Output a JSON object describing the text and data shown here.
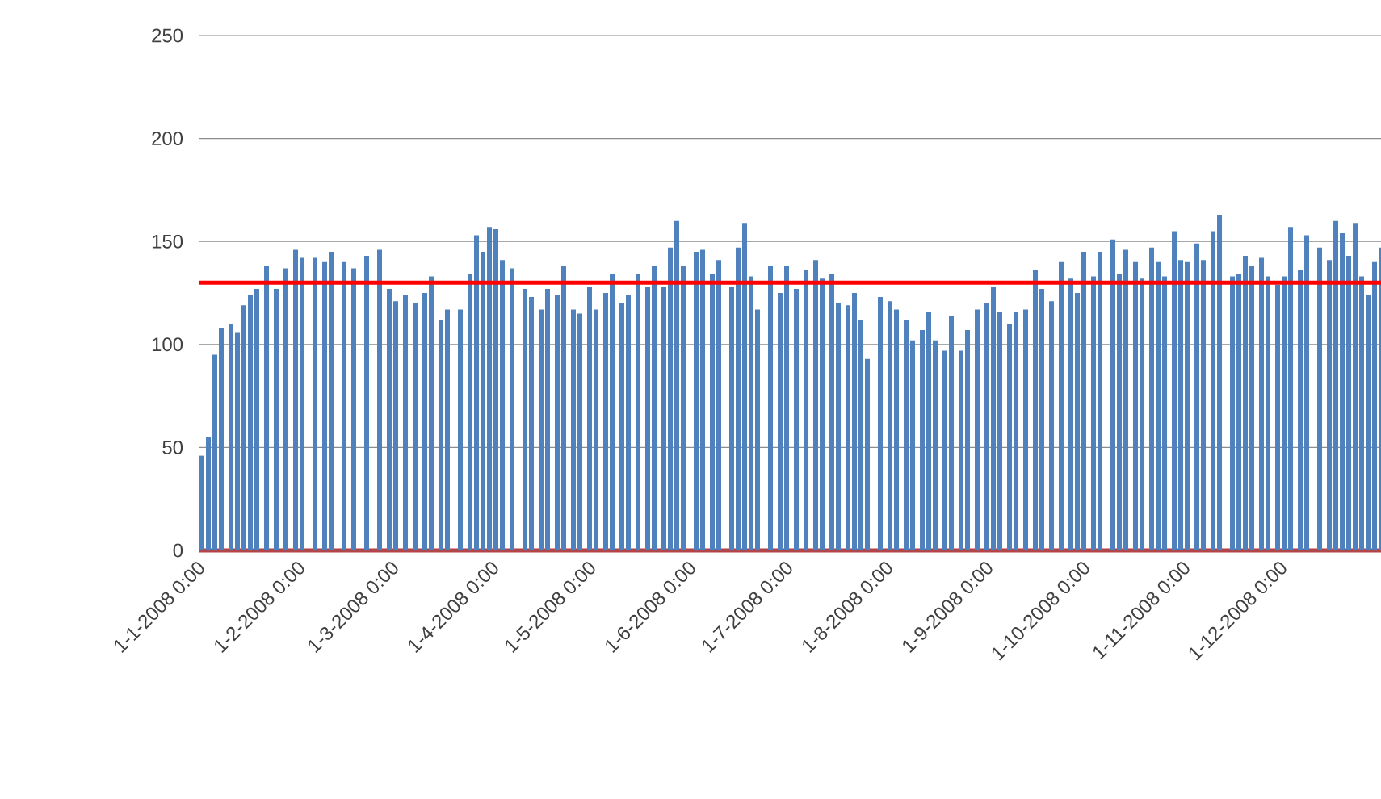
{
  "chart_data": {
    "type": "bar",
    "color": "#4f81bd",
    "x": [
      "2008-01-01",
      "2008-01-03",
      "2008-01-05",
      "2008-01-07",
      "2008-01-10",
      "2008-01-12",
      "2008-01-14",
      "2008-01-16",
      "2008-01-18",
      "2008-01-21",
      "2008-01-24",
      "2008-01-27",
      "2008-01-30",
      "2008-02-01",
      "2008-02-05",
      "2008-02-08",
      "2008-02-10",
      "2008-02-14",
      "2008-02-17",
      "2008-02-21",
      "2008-02-25",
      "2008-02-28",
      "2008-03-01",
      "2008-03-04",
      "2008-03-07",
      "2008-03-10",
      "2008-03-12",
      "2008-03-15",
      "2008-03-17",
      "2008-03-21",
      "2008-03-24",
      "2008-03-26",
      "2008-03-28",
      "2008-03-30",
      "2008-04-01",
      "2008-04-03",
      "2008-04-06",
      "2008-04-10",
      "2008-04-12",
      "2008-04-15",
      "2008-04-17",
      "2008-04-20",
      "2008-04-22",
      "2008-04-25",
      "2008-04-27",
      "2008-04-30",
      "2008-05-02",
      "2008-05-05",
      "2008-05-07",
      "2008-05-10",
      "2008-05-12",
      "2008-05-15",
      "2008-05-18",
      "2008-05-20",
      "2008-05-23",
      "2008-05-25",
      "2008-05-27",
      "2008-05-29",
      "2008-06-02",
      "2008-06-04",
      "2008-06-07",
      "2008-06-09",
      "2008-06-13",
      "2008-06-15",
      "2008-06-17",
      "2008-06-19",
      "2008-06-21",
      "2008-06-25",
      "2008-06-28",
      "2008-06-30",
      "2008-07-03",
      "2008-07-06",
      "2008-07-09",
      "2008-07-11",
      "2008-07-14",
      "2008-07-16",
      "2008-07-19",
      "2008-07-21",
      "2008-07-23",
      "2008-07-25",
      "2008-07-29",
      "2008-08-01",
      "2008-08-03",
      "2008-08-06",
      "2008-08-08",
      "2008-08-11",
      "2008-08-13",
      "2008-08-15",
      "2008-08-18",
      "2008-08-20",
      "2008-08-23",
      "2008-08-25",
      "2008-08-28",
      "2008-08-31",
      "2008-09-02",
      "2008-09-04",
      "2008-09-07",
      "2008-09-09",
      "2008-09-12",
      "2008-09-15",
      "2008-09-17",
      "2008-09-20",
      "2008-09-23",
      "2008-09-26",
      "2008-09-28",
      "2008-09-30",
      "2008-10-03",
      "2008-10-05",
      "2008-10-09",
      "2008-10-11",
      "2008-10-13",
      "2008-10-16",
      "2008-10-18",
      "2008-10-21",
      "2008-10-23",
      "2008-10-25",
      "2008-10-28",
      "2008-10-30",
      "2008-11-01",
      "2008-11-04",
      "2008-11-06",
      "2008-11-09",
      "2008-11-11",
      "2008-11-15",
      "2008-11-17",
      "2008-11-19",
      "2008-11-21",
      "2008-11-24",
      "2008-11-26",
      "2008-11-29",
      "2008-12-01",
      "2008-12-03",
      "2008-12-06",
      "2008-12-08",
      "2008-12-12",
      "2008-12-15",
      "2008-12-17",
      "2008-12-19",
      "2008-12-21",
      "2008-12-23",
      "2008-12-25",
      "2008-12-27",
      "2008-12-29",
      "2008-12-31"
    ],
    "values": [
      46,
      55,
      95,
      108,
      110,
      106,
      119,
      124,
      127,
      138,
      127,
      137,
      146,
      142,
      142,
      140,
      145,
      140,
      137,
      143,
      146,
      127,
      121,
      124,
      120,
      125,
      133,
      112,
      117,
      117,
      134,
      153,
      145,
      157,
      156,
      141,
      137,
      127,
      123,
      117,
      127,
      124,
      138,
      117,
      115,
      128,
      117,
      125,
      134,
      120,
      124,
      134,
      128,
      138,
      128,
      147,
      160,
      138,
      145,
      146,
      134,
      141,
      128,
      147,
      159,
      133,
      117,
      138,
      125,
      138,
      127,
      136,
      141,
      132,
      134,
      120,
      119,
      125,
      112,
      93,
      123,
      121,
      117,
      112,
      102,
      107,
      116,
      102,
      97,
      114,
      97,
      107,
      117,
      120,
      128,
      116,
      110,
      116,
      117,
      136,
      127,
      121,
      140,
      132,
      125,
      145,
      133,
      145,
      151,
      134,
      146,
      140,
      132,
      147,
      140,
      133,
      155,
      141,
      140,
      149,
      141,
      155,
      163,
      133,
      134,
      143,
      138,
      142,
      133,
      129,
      133,
      157,
      136,
      153,
      147,
      141,
      160,
      154,
      143,
      159,
      133,
      124,
      140,
      147
    ],
    "xlim": [
      "2007-12-31",
      "2008-12-31"
    ],
    "xticks": [
      {
        "value": "2008-01-01",
        "label": "1-1-2008 0:00"
      },
      {
        "value": "2008-02-01",
        "label": "1-2-2008 0:00"
      },
      {
        "value": "2008-03-01",
        "label": "1-3-2008 0:00"
      },
      {
        "value": "2008-04-01",
        "label": "1-4-2008 0:00"
      },
      {
        "value": "2008-05-01",
        "label": "1-5-2008 0:00"
      },
      {
        "value": "2008-06-01",
        "label": "1-6-2008 0:00"
      },
      {
        "value": "2008-07-01",
        "label": "1-7-2008 0:00"
      },
      {
        "value": "2008-08-01",
        "label": "1-8-2008 0:00"
      },
      {
        "value": "2008-09-01",
        "label": "1-9-2008 0:00"
      },
      {
        "value": "2008-10-01",
        "label": "1-10-2008 0:00"
      },
      {
        "value": "2008-11-01",
        "label": "1-11-2008 0:00"
      },
      {
        "value": "2008-12-01",
        "label": "1-12-2008 0:00"
      }
    ],
    "ylim": [
      0,
      250
    ],
    "yticks": [
      0,
      50,
      100,
      150,
      200,
      250
    ],
    "grid": "y",
    "ref_lines": [
      {
        "axis": "y",
        "value": 130,
        "color": "#ff0000"
      }
    ]
  }
}
